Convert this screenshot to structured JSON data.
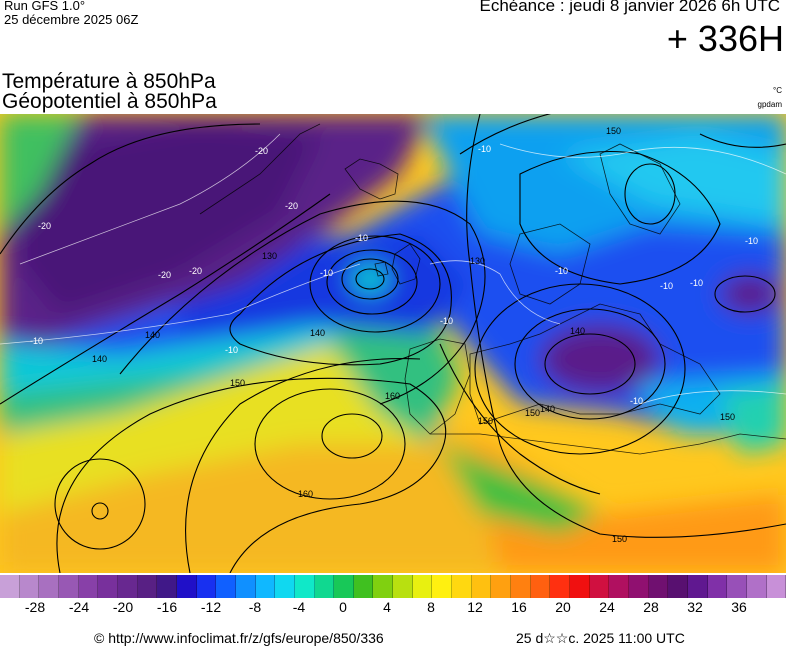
{
  "header": {
    "run_label": "Run GFS 1.0°",
    "run_date": "25 décembre 2025 06Z",
    "valid_time": "Echéance : jeudi 8 janvier 2026 6h UTC",
    "forecast_hour": "+ 336H"
  },
  "titles": {
    "line1": "Température à 850hPa",
    "line2": "Géopotentiel à 850hPa",
    "unit_temperature": "°C",
    "unit_geopotential": "gpdam"
  },
  "map": {
    "contour_labels": [
      "140",
      "130",
      "150",
      "160",
      "160",
      "150",
      "140",
      "130",
      "150",
      "140",
      "140",
      "150",
      "150",
      "140",
      "150"
    ],
    "temperature_labels": [
      "-20",
      "-20",
      "-20",
      "-20",
      "-20",
      "-10",
      "-10",
      "-10",
      "-10",
      "-10",
      "-10",
      "-10",
      "-10",
      "-10",
      "-10",
      "-10"
    ]
  },
  "colorbar": {
    "ticks": [
      "-28",
      "-24",
      "-20",
      "-16",
      "-12",
      "-8",
      "-4",
      "0",
      "4",
      "8",
      "12",
      "16",
      "20",
      "24",
      "28",
      "32",
      "36"
    ],
    "colors": [
      "#c8a0d8",
      "#b888cc",
      "#a870c0",
      "#9858b4",
      "#8840a8",
      "#78309c",
      "#682890",
      "#582084",
      "#401888",
      "#2010c8",
      "#1830f0",
      "#1060ff",
      "#1090ff",
      "#10b8ff",
      "#10d8f0",
      "#10e8c8",
      "#10d890",
      "#18c858",
      "#40c020",
      "#80d010",
      "#b8e010",
      "#e8f010",
      "#fff010",
      "#ffd810",
      "#ffc010",
      "#ffa010",
      "#ff8010",
      "#ff6010",
      "#ff3010",
      "#f01010",
      "#d01040",
      "#b01060",
      "#901070",
      "#701070",
      "#581070",
      "#601890",
      "#8030a8",
      "#9850b8",
      "#b070c8",
      "#c890d8"
    ]
  },
  "footer": {
    "url": "© http://www.infoclimat.fr/z/gfs/europe/850/336",
    "generated": "25 d☆☆c. 2025 11:00 UTC"
  }
}
